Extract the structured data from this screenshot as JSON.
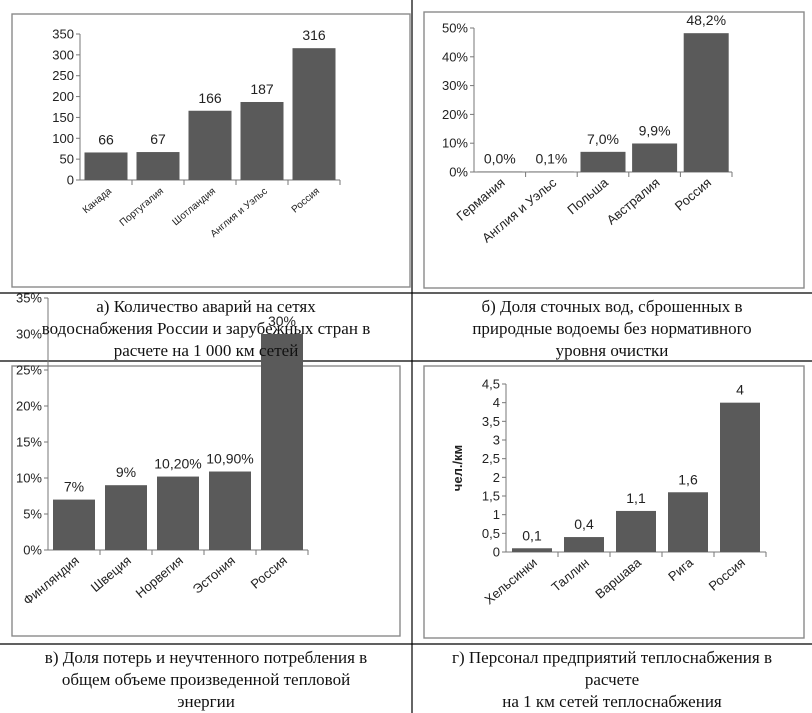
{
  "bar_color": "#5a5a5a",
  "chart_data": [
    {
      "type": "bar",
      "categories": [
        "Канада",
        "Португалия",
        "Шотландия",
        "Англия и Уэльс",
        "Россия"
      ],
      "values": [
        66,
        67,
        166,
        187,
        316
      ],
      "value_labels": [
        "66",
        "67",
        "166",
        "187",
        "316"
      ],
      "y_ticks": [
        "0",
        "50",
        "100",
        "150",
        "200",
        "250",
        "300",
        "350"
      ],
      "ylim": [
        0,
        350
      ],
      "ylabel": "",
      "grid": false,
      "caption_lines": [
        "а) Количество аварий на сетях",
        "водоснабжения России и зарубежных стран в",
        "расчете на 1 000 км сетей"
      ]
    },
    {
      "type": "bar",
      "categories": [
        "Германия",
        "Англия и Уэльс",
        "Польша",
        "Австралия",
        "Россия"
      ],
      "values": [
        0.0,
        0.1,
        7.0,
        9.9,
        48.2
      ],
      "value_labels": [
        "0,0%",
        "0,1%",
        "7,0%",
        "9,9%",
        "48,2%"
      ],
      "y_ticks": [
        "0%",
        "10%",
        "20%",
        "30%",
        "40%",
        "50%"
      ],
      "ylim": [
        0,
        50
      ],
      "ylabel": "",
      "grid": false,
      "caption_lines": [
        "б) Доля сточных вод, сброшенных в",
        "природные водоемы без нормативного",
        "уровня очистки"
      ]
    },
    {
      "type": "bar",
      "categories": [
        "Финляндия",
        "Швеция",
        "Норвегия",
        "Эстония",
        "Россия"
      ],
      "values": [
        7,
        9,
        10.2,
        10.9,
        30
      ],
      "value_labels": [
        "7%",
        "9%",
        "10,20%",
        "10,90%",
        "30%"
      ],
      "y_ticks": [
        "0%",
        "5%",
        "10%",
        "15%",
        "20%",
        "25%",
        "30%",
        "35%"
      ],
      "ylim": [
        0,
        35
      ],
      "ylabel": "",
      "grid": false,
      "caption_lines": [
        "в) Доля потерь и неучтенного потребления в",
        "общем объеме произведенной тепловой",
        "энергии"
      ]
    },
    {
      "type": "bar",
      "categories": [
        "Хельсинки",
        "Таллин",
        "Варшава",
        "Рига",
        "Россия"
      ],
      "values": [
        0.1,
        0.4,
        1.1,
        1.6,
        4
      ],
      "value_labels": [
        "0,1",
        "0,4",
        "1,1",
        "1,6",
        "4"
      ],
      "y_ticks": [
        "0",
        "0,5",
        "1",
        "1,5",
        "2",
        "2,5",
        "3",
        "3,5",
        "4",
        "4,5"
      ],
      "ylim": [
        0,
        4.5
      ],
      "ylabel": "чел./км",
      "grid": false,
      "caption_lines": [
        "г) Персонал предприятий теплоснабжения в",
        "расчете",
        "на 1 км сетей теплоснабжения"
      ]
    }
  ]
}
